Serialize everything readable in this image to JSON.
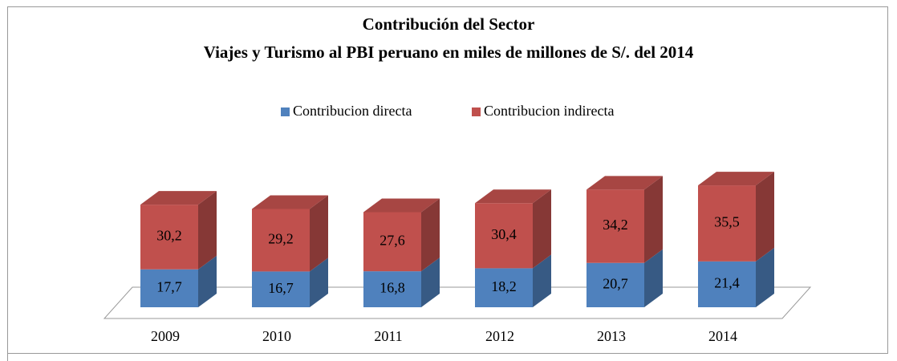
{
  "chart_data": {
    "type": "bar3d_stacked",
    "title": [
      "Contribución del Sector",
      "Viajes y Turismo al PBI peruano en miles de millones de S/. del 2014"
    ],
    "categories": [
      "2009",
      "2010",
      "2011",
      "2012",
      "2013",
      "2014"
    ],
    "series": [
      {
        "name": "Contribucion directa",
        "color": "#4f81bd",
        "values": [
          17.7,
          16.7,
          16.8,
          18.2,
          20.7,
          21.4
        ],
        "value_labels": [
          "17,7",
          "16,7",
          "16,8",
          "18,2",
          "20,7",
          "21,4"
        ]
      },
      {
        "name": "Contribucion indirecta",
        "color": "#c0504d",
        "values": [
          30.2,
          29.2,
          27.6,
          30.4,
          34.2,
          35.5
        ],
        "value_labels": [
          "30,2",
          "29,2",
          "27,6",
          "30,4",
          "34,2",
          "35,5"
        ]
      }
    ],
    "legend": "top"
  }
}
